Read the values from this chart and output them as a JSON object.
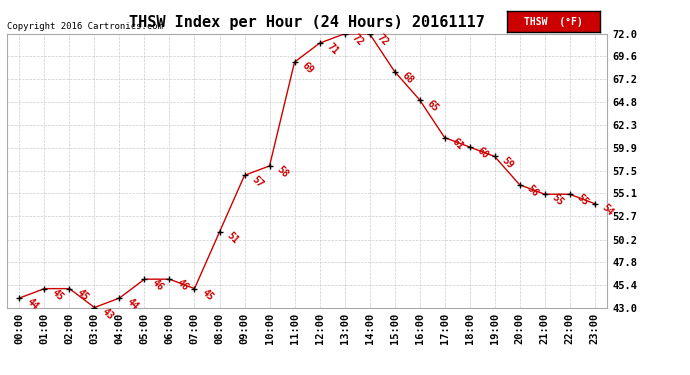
{
  "title": "THSW Index per Hour (24 Hours) 20161117",
  "copyright": "Copyright 2016 Cartronics.com",
  "legend_label": "THSW  (°F)",
  "hours": [
    "00:00",
    "01:00",
    "02:00",
    "03:00",
    "04:00",
    "05:00",
    "06:00",
    "07:00",
    "08:00",
    "09:00",
    "10:00",
    "11:00",
    "12:00",
    "13:00",
    "14:00",
    "15:00",
    "16:00",
    "17:00",
    "18:00",
    "19:00",
    "20:00",
    "21:00",
    "22:00",
    "23:00"
  ],
  "values": [
    44,
    45,
    45,
    43,
    44,
    46,
    46,
    45,
    51,
    57,
    58,
    69,
    71,
    72,
    72,
    68,
    65,
    61,
    60,
    59,
    56,
    55,
    55,
    54
  ],
  "line_color": "#cc0000",
  "marker_color": "#000000",
  "bg_color": "#ffffff",
  "grid_color": "#cccccc",
  "ylim": [
    43.0,
    72.0
  ],
  "ytick_vals": [
    43.0,
    45.4,
    47.8,
    50.2,
    52.7,
    55.1,
    57.5,
    59.9,
    62.3,
    64.8,
    67.2,
    69.6,
    72.0
  ],
  "ytick_labels": [
    "43.0",
    "45.4",
    "47.8",
    "50.2",
    "52.7",
    "55.1",
    "57.5",
    "59.9",
    "62.3",
    "64.8",
    "67.2",
    "69.6",
    "72.0"
  ],
  "title_fontsize": 11,
  "label_fontsize": 7.5,
  "annotation_fontsize": 7,
  "legend_bg": "#cc0000",
  "legend_text_color": "#ffffff"
}
